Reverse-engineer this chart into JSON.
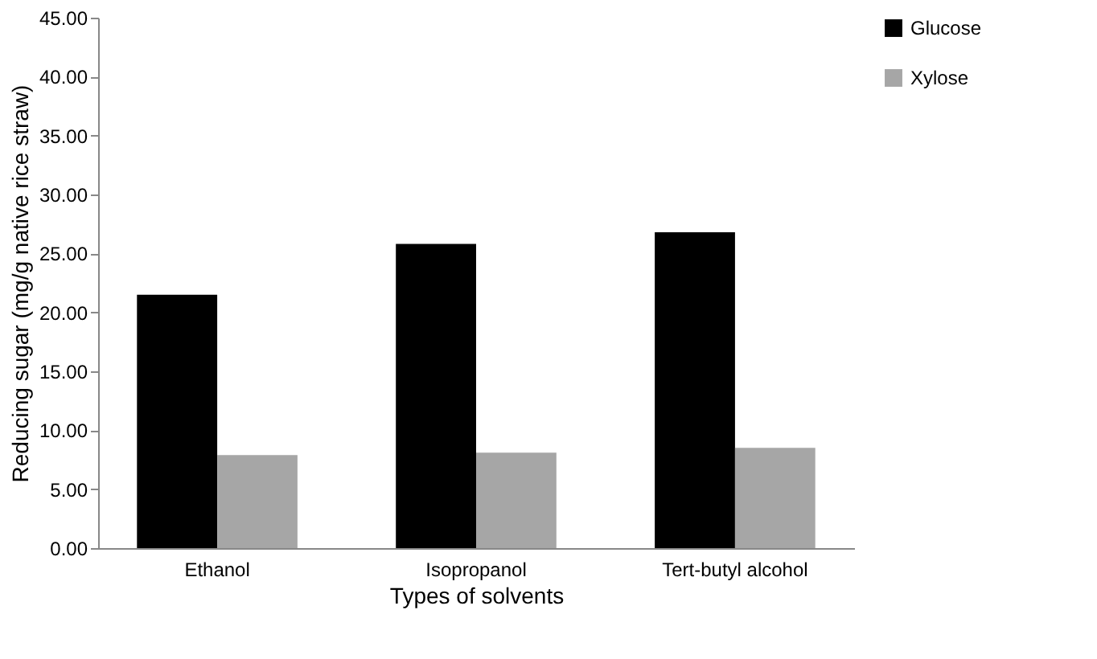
{
  "chart_data": {
    "type": "bar",
    "xlabel": "Types of solvents",
    "ylabel": "Reducing sugar (mg/g native rice straw)",
    "categories": [
      "Ethanol",
      "Isopropanol",
      "Tert-butyl alcohol"
    ],
    "series": [
      {
        "name": "Glucose",
        "color": "#000000",
        "values": [
          21.5,
          25.8,
          26.8
        ]
      },
      {
        "name": "Xylose",
        "color": "#a6a6a6",
        "values": [
          7.9,
          8.1,
          8.5
        ]
      }
    ],
    "ylim": [
      0,
      45
    ],
    "yticks": [
      {
        "value": 0,
        "label": "0.00"
      },
      {
        "value": 5,
        "label": "5.00"
      },
      {
        "value": 10,
        "label": "10.00"
      },
      {
        "value": 15,
        "label": "15.00"
      },
      {
        "value": 20,
        "label": "20.00"
      },
      {
        "value": 25,
        "label": "25.00"
      },
      {
        "value": 30,
        "label": "30.00"
      },
      {
        "value": 35,
        "label": "35.00"
      },
      {
        "value": 40,
        "label": "40.00"
      },
      {
        "value": 45,
        "label": "45.00"
      }
    ],
    "grid": false,
    "legend": "right"
  }
}
